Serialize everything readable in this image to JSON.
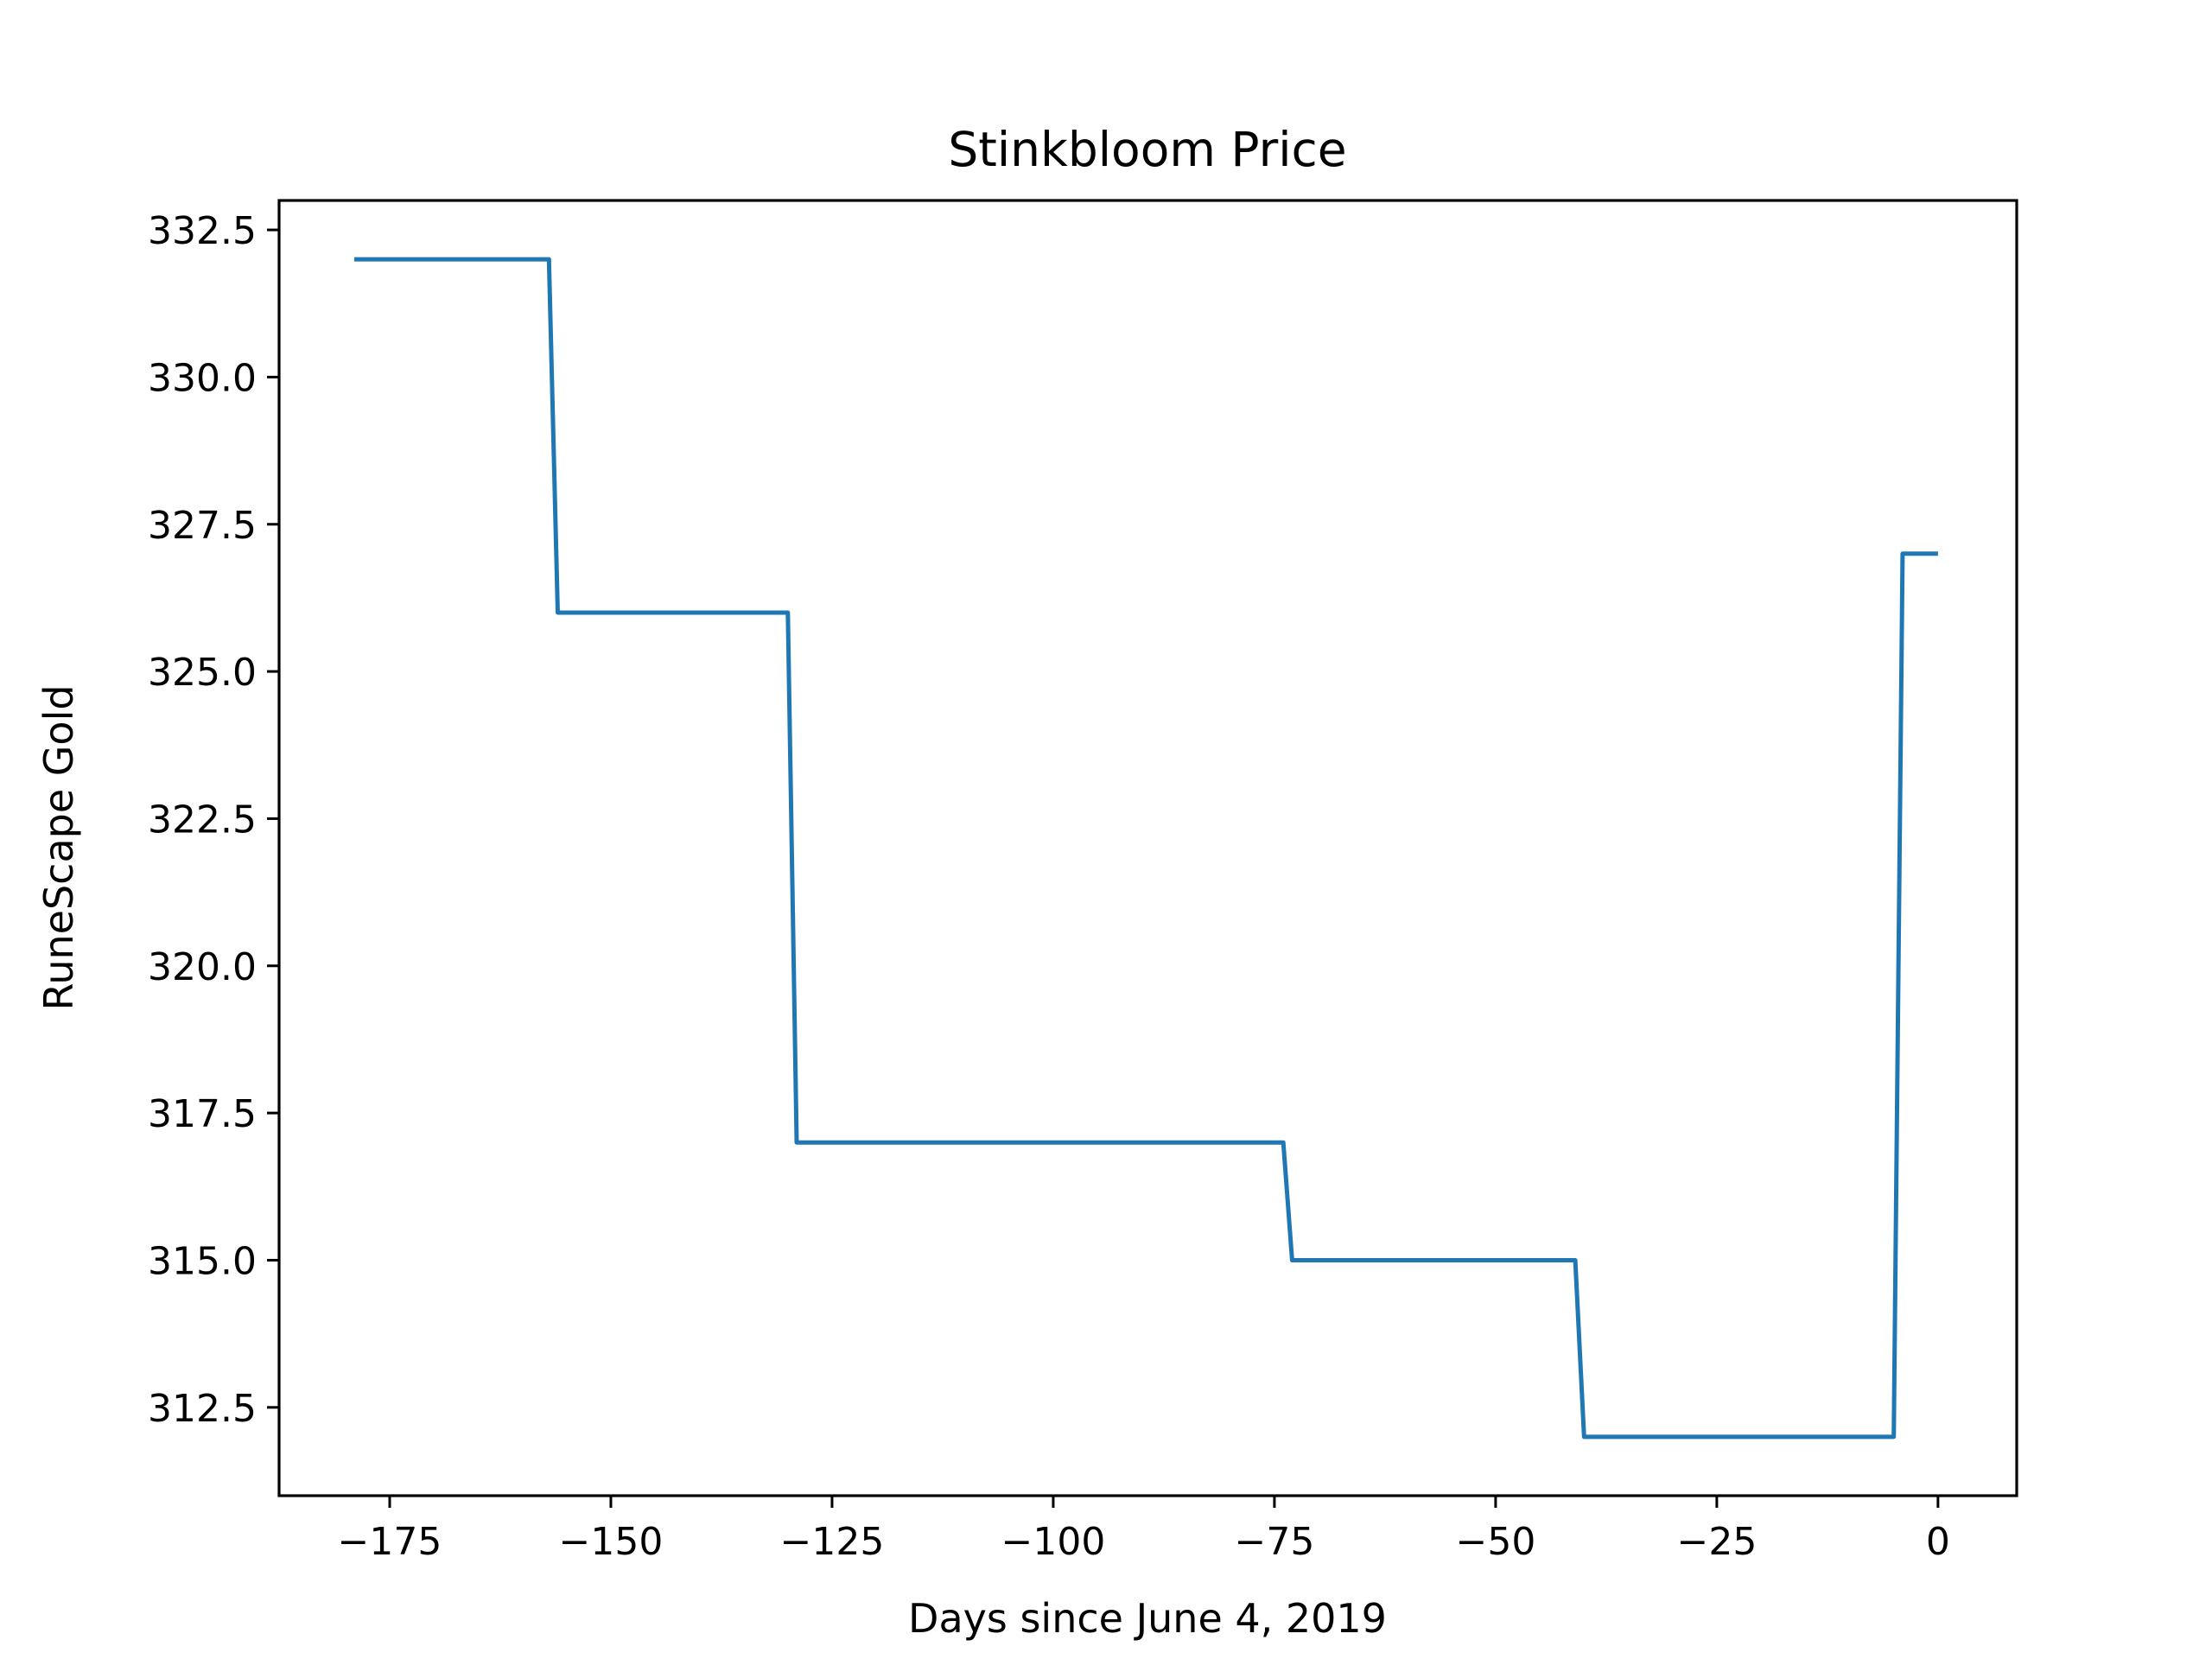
{
  "chart_data": {
    "type": "line",
    "title": "Stinkbloom Price",
    "xlabel": "Days since June 4, 2019",
    "ylabel": "RuneScape Gold",
    "xlim": [
      -187.5,
      8.9
    ],
    "ylim": [
      311.0,
      333.0
    ],
    "xticks": [
      -175,
      -150,
      -125,
      -100,
      -75,
      -50,
      -25,
      0
    ],
    "xtick_labels": [
      "−175",
      "−150",
      "−125",
      "−100",
      "−75",
      "−50",
      "−25",
      "0"
    ],
    "yticks": [
      312.5,
      315.0,
      317.5,
      320.0,
      322.5,
      325.0,
      327.5,
      330.0,
      332.5
    ],
    "ytick_labels": [
      "312.5",
      "315.0",
      "317.5",
      "320.0",
      "322.5",
      "325.0",
      "327.5",
      "330.0",
      "332.5"
    ],
    "grid": false,
    "series": [
      {
        "color": "#1f77b4",
        "x": [
          -179,
          -157,
          -156,
          -130,
          -129,
          -74,
          -73,
          -41,
          -40,
          -5,
          -4,
          0
        ],
        "y": [
          332,
          332,
          326,
          326,
          317,
          317,
          315,
          315,
          312,
          312,
          327,
          327
        ]
      }
    ]
  }
}
